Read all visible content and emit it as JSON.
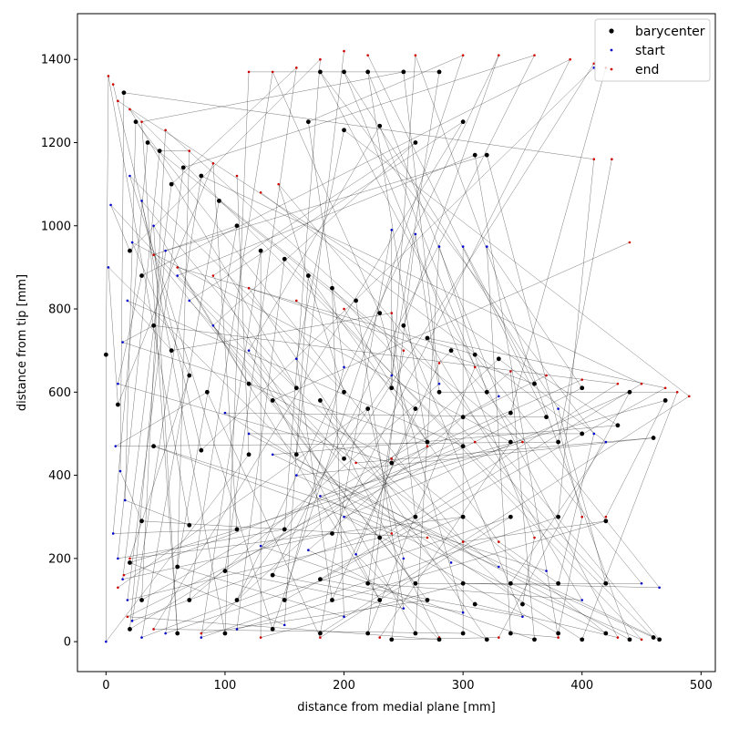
{
  "chart_data": {
    "type": "scatter",
    "title": "",
    "xlabel": "distance from medial plane [mm]",
    "ylabel": "distance from tip [mm]",
    "xlim": [
      -24,
      512
    ],
    "ylim": [
      -72,
      1510
    ],
    "xticks": [
      0,
      100,
      200,
      300,
      400,
      500
    ],
    "yticks": [
      0,
      200,
      400,
      600,
      800,
      1000,
      1200,
      1400
    ],
    "grid": false,
    "legend_placement": "top-right",
    "connector_color": "#000000",
    "series": [
      {
        "name": "barycenter",
        "color": "#000000",
        "points": [
          [
            0,
            690
          ],
          [
            10,
            570
          ],
          [
            20,
            940
          ],
          [
            30,
            880
          ],
          [
            40,
            760
          ],
          [
            55,
            700
          ],
          [
            70,
            640
          ],
          [
            85,
            600
          ],
          [
            15,
            1320
          ],
          [
            25,
            1250
          ],
          [
            35,
            1200
          ],
          [
            45,
            1180
          ],
          [
            55,
            1100
          ],
          [
            65,
            1140
          ],
          [
            80,
            1120
          ],
          [
            95,
            1060
          ],
          [
            110,
            1000
          ],
          [
            130,
            940
          ],
          [
            150,
            920
          ],
          [
            170,
            880
          ],
          [
            190,
            850
          ],
          [
            210,
            820
          ],
          [
            230,
            790
          ],
          [
            250,
            760
          ],
          [
            270,
            730
          ],
          [
            290,
            700
          ],
          [
            310,
            690
          ],
          [
            330,
            680
          ],
          [
            180,
            1370
          ],
          [
            200,
            1370
          ],
          [
            220,
            1370
          ],
          [
            250,
            1370
          ],
          [
            280,
            1370
          ],
          [
            170,
            1250
          ],
          [
            200,
            1230
          ],
          [
            230,
            1240
          ],
          [
            260,
            1200
          ],
          [
            300,
            1250
          ],
          [
            310,
            1170
          ],
          [
            320,
            1170
          ],
          [
            120,
            620
          ],
          [
            160,
            610
          ],
          [
            200,
            600
          ],
          [
            240,
            610
          ],
          [
            280,
            600
          ],
          [
            320,
            600
          ],
          [
            360,
            620
          ],
          [
            400,
            610
          ],
          [
            440,
            600
          ],
          [
            470,
            580
          ],
          [
            460,
            490
          ],
          [
            430,
            520
          ],
          [
            400,
            500
          ],
          [
            370,
            540
          ],
          [
            340,
            550
          ],
          [
            300,
            540
          ],
          [
            260,
            560
          ],
          [
            220,
            560
          ],
          [
            180,
            580
          ],
          [
            140,
            580
          ],
          [
            40,
            470
          ],
          [
            80,
            460
          ],
          [
            120,
            450
          ],
          [
            160,
            450
          ],
          [
            200,
            440
          ],
          [
            240,
            430
          ],
          [
            270,
            480
          ],
          [
            300,
            470
          ],
          [
            340,
            480
          ],
          [
            380,
            480
          ],
          [
            30,
            290
          ],
          [
            70,
            280
          ],
          [
            110,
            270
          ],
          [
            150,
            270
          ],
          [
            190,
            260
          ],
          [
            230,
            250
          ],
          [
            260,
            300
          ],
          [
            300,
            300
          ],
          [
            340,
            300
          ],
          [
            380,
            300
          ],
          [
            420,
            290
          ],
          [
            20,
            190
          ],
          [
            60,
            180
          ],
          [
            100,
            170
          ],
          [
            140,
            160
          ],
          [
            180,
            150
          ],
          [
            220,
            140
          ],
          [
            260,
            140
          ],
          [
            300,
            140
          ],
          [
            340,
            140
          ],
          [
            380,
            140
          ],
          [
            420,
            140
          ],
          [
            30,
            100
          ],
          [
            70,
            100
          ],
          [
            110,
            100
          ],
          [
            150,
            100
          ],
          [
            190,
            100
          ],
          [
            230,
            100
          ],
          [
            270,
            100
          ],
          [
            310,
            90
          ],
          [
            350,
            90
          ],
          [
            20,
            30
          ],
          [
            60,
            20
          ],
          [
            100,
            20
          ],
          [
            140,
            30
          ],
          [
            180,
            20
          ],
          [
            220,
            20
          ],
          [
            260,
            20
          ],
          [
            300,
            20
          ],
          [
            340,
            20
          ],
          [
            380,
            20
          ],
          [
            420,
            20
          ],
          [
            460,
            10
          ],
          [
            465,
            5
          ],
          [
            440,
            5
          ],
          [
            400,
            5
          ],
          [
            360,
            5
          ],
          [
            320,
            5
          ],
          [
            280,
            5
          ],
          [
            240,
            5
          ]
        ]
      },
      {
        "name": "start",
        "color": "#0000cc",
        "points": [
          [
            0,
            0
          ],
          [
            2,
            900
          ],
          [
            4,
            1050
          ],
          [
            10,
            620
          ],
          [
            14,
            720
          ],
          [
            18,
            820
          ],
          [
            22,
            960
          ],
          [
            8,
            470
          ],
          [
            12,
            410
          ],
          [
            16,
            340
          ],
          [
            6,
            260
          ],
          [
            10,
            200
          ],
          [
            14,
            150
          ],
          [
            18,
            100
          ],
          [
            22,
            50
          ],
          [
            30,
            10
          ],
          [
            50,
            20
          ],
          [
            80,
            10
          ],
          [
            110,
            30
          ],
          [
            150,
            40
          ],
          [
            200,
            60
          ],
          [
            250,
            80
          ],
          [
            300,
            70
          ],
          [
            350,
            60
          ],
          [
            400,
            100
          ],
          [
            450,
            140
          ],
          [
            465,
            130
          ],
          [
            420,
            480
          ],
          [
            410,
            500
          ],
          [
            380,
            560
          ],
          [
            330,
            590
          ],
          [
            280,
            620
          ],
          [
            240,
            640
          ],
          [
            200,
            660
          ],
          [
            160,
            680
          ],
          [
            120,
            700
          ],
          [
            90,
            760
          ],
          [
            70,
            820
          ],
          [
            60,
            880
          ],
          [
            50,
            940
          ],
          [
            40,
            1000
          ],
          [
            30,
            1060
          ],
          [
            20,
            1120
          ],
          [
            240,
            990
          ],
          [
            260,
            980
          ],
          [
            280,
            950
          ],
          [
            300,
            950
          ],
          [
            320,
            950
          ],
          [
            200,
            300
          ],
          [
            180,
            350
          ],
          [
            160,
            400
          ],
          [
            140,
            450
          ],
          [
            120,
            500
          ],
          [
            100,
            550
          ],
          [
            130,
            230
          ],
          [
            170,
            220
          ],
          [
            210,
            210
          ],
          [
            250,
            200
          ],
          [
            290,
            190
          ],
          [
            330,
            180
          ],
          [
            370,
            170
          ],
          [
            410,
            1380
          ]
        ]
      },
      {
        "name": "end",
        "color": "#cc0000",
        "points": [
          [
            2,
            1360
          ],
          [
            6,
            1340
          ],
          [
            10,
            1300
          ],
          [
            20,
            1280
          ],
          [
            30,
            1250
          ],
          [
            50,
            1230
          ],
          [
            70,
            1180
          ],
          [
            90,
            1150
          ],
          [
            110,
            1120
          ],
          [
            130,
            1080
          ],
          [
            145,
            1100
          ],
          [
            120,
            1370
          ],
          [
            140,
            1370
          ],
          [
            160,
            1380
          ],
          [
            180,
            1400
          ],
          [
            200,
            1420
          ],
          [
            220,
            1410
          ],
          [
            260,
            1410
          ],
          [
            300,
            1410
          ],
          [
            330,
            1410
          ],
          [
            360,
            1410
          ],
          [
            390,
            1400
          ],
          [
            410,
            1390
          ],
          [
            420,
            1380
          ],
          [
            480,
            600
          ],
          [
            490,
            590
          ],
          [
            470,
            610
          ],
          [
            450,
            620
          ],
          [
            430,
            620
          ],
          [
            400,
            630
          ],
          [
            370,
            640
          ],
          [
            340,
            650
          ],
          [
            310,
            660
          ],
          [
            280,
            670
          ],
          [
            250,
            700
          ],
          [
            240,
            790
          ],
          [
            200,
            800
          ],
          [
            160,
            820
          ],
          [
            120,
            850
          ],
          [
            90,
            880
          ],
          [
            60,
            900
          ],
          [
            40,
            930
          ],
          [
            20,
            200
          ],
          [
            15,
            160
          ],
          [
            10,
            130
          ],
          [
            18,
            60
          ],
          [
            40,
            30
          ],
          [
            80,
            20
          ],
          [
            130,
            10
          ],
          [
            180,
            10
          ],
          [
            230,
            10
          ],
          [
            280,
            10
          ],
          [
            330,
            10
          ],
          [
            380,
            10
          ],
          [
            430,
            10
          ],
          [
            450,
            5
          ],
          [
            410,
            1160
          ],
          [
            425,
            1160
          ],
          [
            440,
            960
          ],
          [
            420,
            300
          ],
          [
            400,
            300
          ],
          [
            360,
            250
          ],
          [
            330,
            240
          ],
          [
            300,
            240
          ],
          [
            270,
            250
          ],
          [
            240,
            260
          ],
          [
            210,
            430
          ],
          [
            240,
            440
          ],
          [
            270,
            470
          ],
          [
            310,
            480
          ],
          [
            350,
            480
          ]
        ]
      }
    ]
  }
}
